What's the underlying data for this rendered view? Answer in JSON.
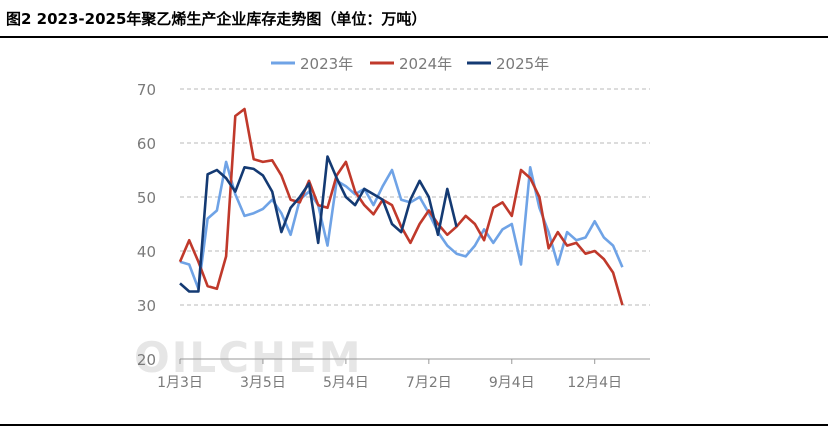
{
  "title": "图2 2023-2025年聚乙烯生产企业库存走势图（单位：万吨）",
  "watermark": "OILCHEM",
  "colors": {
    "s2023": "#6fa3e6",
    "s2024": "#c0392b",
    "s2025": "#143a73",
    "grid": "#b8b8b8",
    "axis": "#999999",
    "text": "#7a7a7a"
  },
  "chart_data": {
    "type": "line",
    "title": "",
    "xlabel": "",
    "ylabel": "",
    "ylim": [
      20,
      70
    ],
    "yticks": [
      20,
      30,
      40,
      50,
      60,
      70
    ],
    "xlim": [
      1,
      52
    ],
    "xticks": [
      {
        "x": 1,
        "label": "1月3日"
      },
      {
        "x": 10,
        "label": "3月5日"
      },
      {
        "x": 19,
        "label": "5月4日"
      },
      {
        "x": 28,
        "label": "7月2日"
      },
      {
        "x": 37,
        "label": "9月4日"
      },
      {
        "x": 46,
        "label": "12月4日"
      }
    ],
    "legend_position": "top",
    "grid": true,
    "series": [
      {
        "name": "2023年",
        "values": [
          [
            1,
            38.0
          ],
          [
            2,
            37.5
          ],
          [
            3,
            33.0
          ],
          [
            4,
            46.0
          ],
          [
            5,
            47.5
          ],
          [
            6,
            56.5
          ],
          [
            7,
            50.5
          ],
          [
            8,
            46.5
          ],
          [
            9,
            47.0
          ],
          [
            10,
            47.8
          ],
          [
            11,
            49.5
          ],
          [
            12,
            47.0
          ],
          [
            13,
            43.0
          ],
          [
            14,
            49.5
          ],
          [
            15,
            51.0
          ],
          [
            16,
            48.5
          ],
          [
            17,
            41.0
          ],
          [
            18,
            53.0
          ],
          [
            19,
            52.0
          ],
          [
            20,
            50.5
          ],
          [
            21,
            51.5
          ],
          [
            22,
            48.5
          ],
          [
            23,
            52.0
          ],
          [
            24,
            55.0
          ],
          [
            25,
            49.5
          ],
          [
            26,
            49.0
          ],
          [
            27,
            50.0
          ],
          [
            28,
            47.0
          ],
          [
            29,
            43.5
          ],
          [
            30,
            41.0
          ],
          [
            31,
            39.5
          ],
          [
            32,
            39.0
          ],
          [
            33,
            41.0
          ],
          [
            34,
            44.0
          ],
          [
            35,
            41.5
          ],
          [
            36,
            44.0
          ],
          [
            37,
            45.0
          ],
          [
            38,
            37.5
          ],
          [
            39,
            55.5
          ],
          [
            40,
            48.0
          ],
          [
            41,
            43.5
          ],
          [
            42,
            37.5
          ],
          [
            43,
            43.5
          ],
          [
            44,
            42.0
          ],
          [
            45,
            42.5
          ],
          [
            46,
            45.5
          ],
          [
            47,
            42.5
          ],
          [
            48,
            41.0
          ],
          [
            49,
            37.0
          ]
        ]
      },
      {
        "name": "2024年",
        "values": [
          [
            1,
            38.0
          ],
          [
            2,
            42.0
          ],
          [
            3,
            38.0
          ],
          [
            4,
            33.5
          ],
          [
            5,
            33.0
          ],
          [
            6,
            39.0
          ],
          [
            7,
            65.0
          ],
          [
            8,
            66.3
          ],
          [
            9,
            57.0
          ],
          [
            10,
            56.5
          ],
          [
            11,
            56.8
          ],
          [
            12,
            54.0
          ],
          [
            13,
            49.5
          ],
          [
            14,
            49.0
          ],
          [
            15,
            53.0
          ],
          [
            16,
            48.5
          ],
          [
            17,
            48.0
          ],
          [
            18,
            54.0
          ],
          [
            19,
            56.5
          ],
          [
            20,
            51.0
          ],
          [
            21,
            48.5
          ],
          [
            22,
            46.8
          ],
          [
            23,
            49.5
          ],
          [
            24,
            48.5
          ],
          [
            25,
            44.5
          ],
          [
            26,
            41.5
          ],
          [
            27,
            45.0
          ],
          [
            28,
            47.5
          ],
          [
            29,
            45.0
          ],
          [
            30,
            43.0
          ],
          [
            31,
            44.5
          ],
          [
            32,
            46.5
          ],
          [
            33,
            45.0
          ],
          [
            34,
            42.0
          ],
          [
            35,
            48.0
          ],
          [
            36,
            49.0
          ],
          [
            37,
            46.5
          ],
          [
            38,
            55.0
          ],
          [
            39,
            53.5
          ],
          [
            40,
            50.0
          ],
          [
            41,
            40.5
          ],
          [
            42,
            43.5
          ],
          [
            43,
            41.0
          ],
          [
            44,
            41.5
          ],
          [
            45,
            39.5
          ],
          [
            46,
            40.0
          ],
          [
            47,
            38.5
          ],
          [
            48,
            36.0
          ],
          [
            49,
            30.0
          ]
        ]
      },
      {
        "name": "2025年",
        "values": [
          [
            1,
            34.0
          ],
          [
            2,
            32.5
          ],
          [
            3,
            32.5
          ],
          [
            4,
            54.2
          ],
          [
            5,
            55.0
          ],
          [
            6,
            53.5
          ],
          [
            7,
            51.0
          ],
          [
            8,
            55.5
          ],
          [
            9,
            55.2
          ],
          [
            10,
            54.0
          ],
          [
            11,
            51.0
          ],
          [
            12,
            43.5
          ],
          [
            13,
            48.0
          ],
          [
            14,
            50.0
          ],
          [
            15,
            52.5
          ],
          [
            16,
            41.5
          ],
          [
            17,
            57.5
          ],
          [
            18,
            53.5
          ],
          [
            19,
            50.0
          ],
          [
            20,
            48.5
          ],
          [
            21,
            51.5
          ],
          [
            22,
            50.5
          ],
          [
            23,
            49.5
          ],
          [
            24,
            45.0
          ],
          [
            25,
            43.5
          ],
          [
            26,
            49.5
          ],
          [
            27,
            53.0
          ],
          [
            28,
            50.0
          ],
          [
            29,
            43.0
          ],
          [
            30,
            51.5
          ],
          [
            31,
            44.5
          ]
        ]
      }
    ]
  }
}
